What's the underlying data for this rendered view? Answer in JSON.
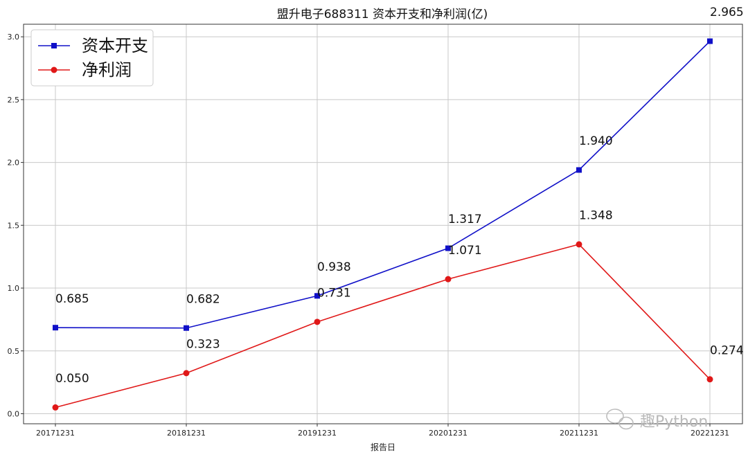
{
  "chart_data": {
    "type": "line",
    "title": "盟升电子688311 资本开支和净利润(亿)",
    "xlabel": "报告日",
    "ylabel": "",
    "categories": [
      "20171231",
      "20181231",
      "20191231",
      "20201231",
      "20211231",
      "20221231"
    ],
    "ylim": [
      -0.08,
      3.1
    ],
    "yticks": [
      "0.0",
      "0.5",
      "1.0",
      "1.5",
      "2.0",
      "2.5",
      "3.0"
    ],
    "grid": true,
    "legend_position": "top-left",
    "series": [
      {
        "name": "资本开支",
        "marker": "square",
        "color": "#1010c8",
        "values": [
          0.685,
          0.682,
          0.938,
          1.317,
          1.94,
          2.965
        ],
        "labels": [
          "0.685",
          "0.682",
          "0.938",
          "1.317",
          "1.940",
          "2.965"
        ]
      },
      {
        "name": "净利润",
        "marker": "circle",
        "color": "#e01818",
        "values": [
          0.05,
          0.323,
          0.731,
          1.071,
          1.348,
          0.274
        ],
        "labels": [
          "0.050",
          "0.323",
          "0.731",
          "1.071",
          "1.348",
          "0.274"
        ]
      }
    ]
  },
  "watermark": "趣Python"
}
